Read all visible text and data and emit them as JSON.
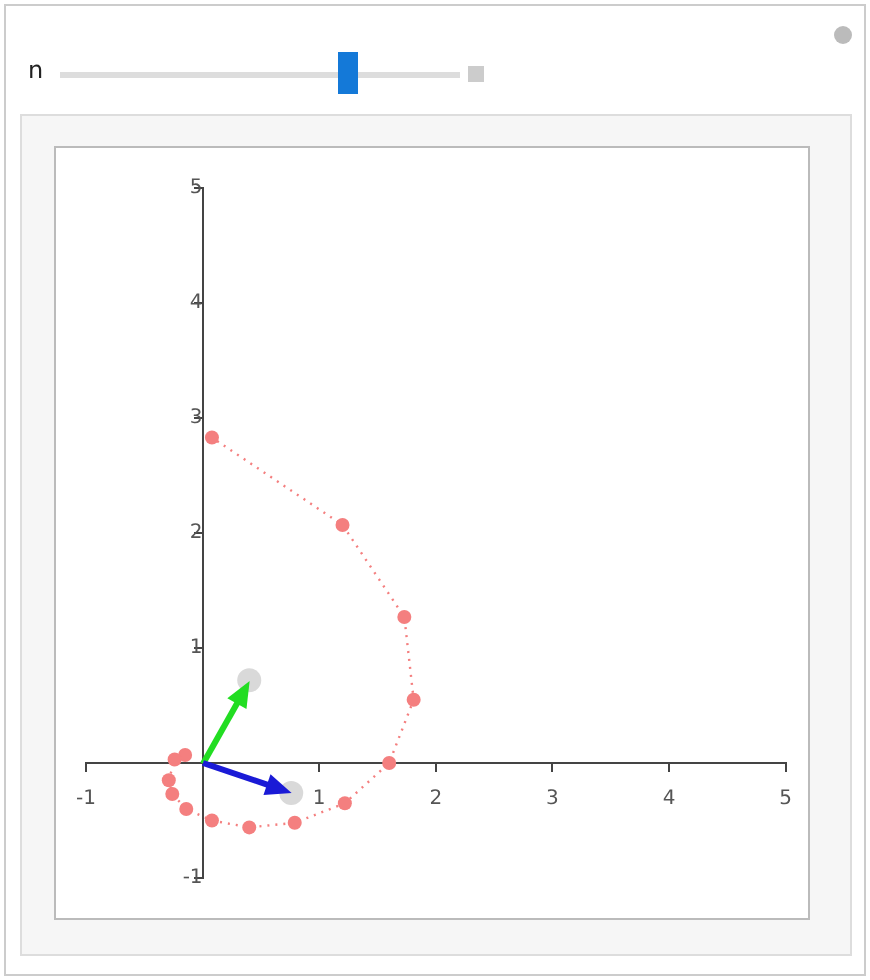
{
  "chart_data": {
    "type": "line",
    "annotations": [
      "n"
    ],
    "x": [
      -0.15,
      -0.24,
      -0.29,
      -0.26,
      -0.14,
      0.08,
      0.4,
      0.79,
      1.22,
      1.6,
      1.81,
      1.73,
      1.2,
      0.08
    ],
    "series": [
      {
        "color": "#f47f7f",
        "line_style": "dotted",
        "marker": "circle",
        "values": [
          0.07,
          0.03,
          -0.15,
          -0.27,
          -0.4,
          -0.5,
          -0.56,
          -0.52,
          -0.35,
          0.0,
          0.55,
          1.27,
          2.07,
          2.83
        ]
      },
      {
        "type": "scatter",
        "color": "#d9d9d9",
        "marker": "circle",
        "x": [
          0.4,
          0.76
        ],
        "values": [
          0.72,
          -0.26
        ]
      }
    ],
    "xlim": [
      -1,
      5
    ],
    "ylim": [
      -1,
      5
    ],
    "xticks": [
      -1,
      {
        "value": 0,
        "label": null
      },
      1,
      2,
      3,
      4,
      5
    ],
    "yticks": [
      -1,
      {
        "value": 0,
        "label": null
      },
      1,
      2,
      3,
      4,
      5
    ],
    "grid": false,
    "legend": false
  }
}
